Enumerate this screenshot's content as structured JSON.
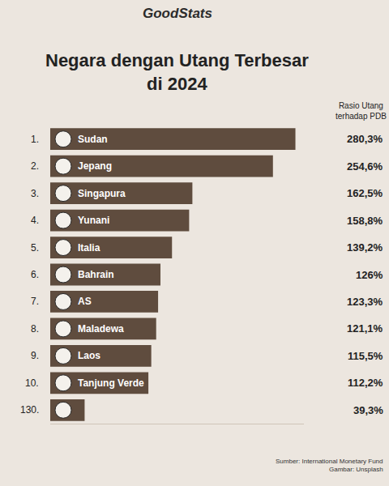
{
  "chart_data": {
    "type": "bar",
    "brand": "GoodStats",
    "title": "Negara dengan Utang Terbesar di 2024",
    "value_header": "Rasio Utang terhadap PDB",
    "source": "Sumber: International Monetary Fund",
    "image_credit": "Gambar: Unsplash",
    "ranks": [
      "1.",
      "2.",
      "3.",
      "4.",
      "5.",
      "6.",
      "7.",
      "8.",
      "9.",
      "10.",
      "130."
    ],
    "categories": [
      "Sudan",
      "Jepang",
      "Singapura",
      "Yunani",
      "Italia",
      "Bahrain",
      "AS",
      "Maladewa",
      "Laos",
      "Tanjung Verde",
      null
    ],
    "values": [
      280.3,
      254.6,
      162.5,
      158.8,
      139.2,
      126,
      123.3,
      121.1,
      115.5,
      112.2,
      39.3
    ],
    "value_labels": [
      "280,3%",
      "254,6%",
      "162,5%",
      "158,8%",
      "139,2%",
      "126%",
      "123,3%",
      "121,1%",
      "115,5%",
      "112,2%",
      "39,3%"
    ],
    "data_labels": true,
    "orientation": "horizontal",
    "color": "#5f4c3e",
    "xlim": [
      0,
      290
    ],
    "xticks": [],
    "grid": false,
    "tick_labels": false
  }
}
